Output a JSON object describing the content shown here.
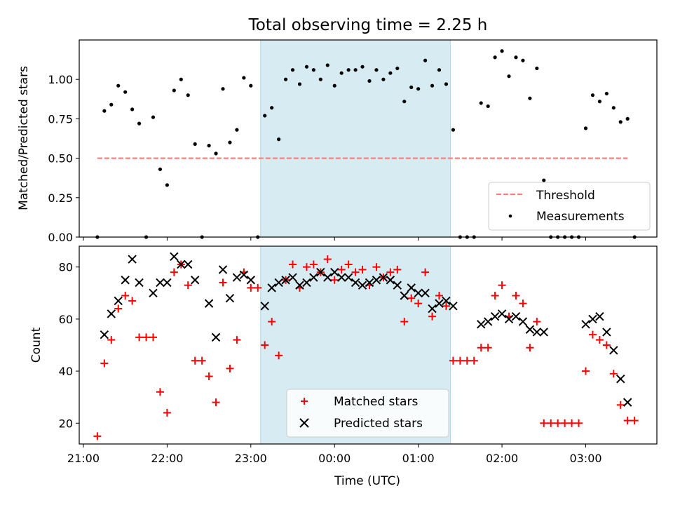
{
  "title": "Total observing time = 2.25 h",
  "chart_data": [
    {
      "type": "scatter",
      "ylabel": "Matched/Predicted stars",
      "xlim_hours": [
        20.95,
        27.85
      ],
      "ylim": [
        0,
        1.25
      ],
      "yticks": [
        0,
        0.25,
        0.5,
        0.75,
        1.0
      ],
      "ytick_labels": [
        "0.00",
        "0.25",
        "0.50",
        "0.75",
        "1.00"
      ],
      "shaded_span": {
        "start": "23:07",
        "end": "01:23"
      },
      "series": [
        {
          "name": "Threshold",
          "style": "dashed-line",
          "color": "#ff7f7f",
          "x": [
            "21:10",
            "03:30"
          ],
          "y": [
            0.5,
            0.5
          ]
        },
        {
          "name": "Measurements",
          "style": "dot",
          "color": "#000000",
          "points": [
            [
              "21:10",
              0.0
            ],
            [
              "21:15",
              0.8
            ],
            [
              "21:20",
              0.84
            ],
            [
              "21:25",
              0.96
            ],
            [
              "21:30",
              0.92
            ],
            [
              "21:35",
              0.81
            ],
            [
              "21:40",
              0.72
            ],
            [
              "21:45",
              0.0
            ],
            [
              "21:50",
              0.76
            ],
            [
              "21:55",
              0.43
            ],
            [
              "22:00",
              0.33
            ],
            [
              "22:05",
              0.93
            ],
            [
              "22:10",
              1.0
            ],
            [
              "22:15",
              0.9
            ],
            [
              "22:20",
              0.59
            ],
            [
              "22:25",
              0.0
            ],
            [
              "22:30",
              0.58
            ],
            [
              "22:35",
              0.53
            ],
            [
              "22:40",
              0.94
            ],
            [
              "22:45",
              0.6
            ],
            [
              "22:50",
              0.68
            ],
            [
              "22:55",
              1.01
            ],
            [
              "23:00",
              0.96
            ],
            [
              "23:05",
              0.0
            ],
            [
              "23:10",
              0.77
            ],
            [
              "23:15",
              0.82
            ],
            [
              "23:20",
              0.62
            ],
            [
              "23:25",
              1.0
            ],
            [
              "23:30",
              1.06
            ],
            [
              "23:35",
              0.97
            ],
            [
              "23:40",
              1.08
            ],
            [
              "23:45",
              1.06
            ],
            [
              "23:50",
              1.0
            ],
            [
              "23:55",
              1.09
            ],
            [
              "00:00",
              0.96
            ],
            [
              "00:05",
              1.04
            ],
            [
              "00:10",
              1.06
            ],
            [
              "00:15",
              1.06
            ],
            [
              "00:20",
              1.08
            ],
            [
              "00:25",
              0.99
            ],
            [
              "00:30",
              1.06
            ],
            [
              "00:35",
              1.0
            ],
            [
              "00:40",
              1.04
            ],
            [
              "00:45",
              1.07
            ],
            [
              "00:50",
              0.86
            ],
            [
              "00:55",
              0.95
            ],
            [
              "01:00",
              0.94
            ],
            [
              "01:05",
              1.12
            ],
            [
              "01:10",
              0.96
            ],
            [
              "01:15",
              1.06
            ],
            [
              "01:20",
              0.97
            ],
            [
              "01:25",
              0.68
            ],
            [
              "01:30",
              0.0
            ],
            [
              "01:35",
              0.0
            ],
            [
              "01:40",
              0.0
            ],
            [
              "01:45",
              0.85
            ],
            [
              "01:50",
              0.83
            ],
            [
              "01:55",
              1.14
            ],
            [
              "02:00",
              1.18
            ],
            [
              "02:05",
              1.02
            ],
            [
              "02:10",
              1.14
            ],
            [
              "02:15",
              1.12
            ],
            [
              "02:20",
              0.88
            ],
            [
              "02:25",
              1.07
            ],
            [
              "02:30",
              0.36
            ],
            [
              "02:35",
              0.0
            ],
            [
              "02:40",
              0.0
            ],
            [
              "02:45",
              0.0
            ],
            [
              "02:50",
              0.0
            ],
            [
              "02:55",
              0.0
            ],
            [
              "03:00",
              0.69
            ],
            [
              "03:05",
              0.9
            ],
            [
              "03:10",
              0.86
            ],
            [
              "03:15",
              0.91
            ],
            [
              "03:20",
              0.82
            ],
            [
              "03:25",
              0.73
            ],
            [
              "03:30",
              0.75
            ],
            [
              "03:35",
              0.0
            ]
          ]
        }
      ],
      "legend": {
        "position": "lower right",
        "entries": [
          "Threshold",
          "Measurements"
        ]
      }
    },
    {
      "type": "scatter",
      "xlabel": "Time (UTC)",
      "ylabel": "Count",
      "xlim_hours": [
        20.95,
        27.85
      ],
      "ylim": [
        12,
        88
      ],
      "yticks": [
        20,
        40,
        60,
        80
      ],
      "ytick_labels": [
        "20",
        "40",
        "60",
        "80"
      ],
      "xtick_labels": [
        "21:00",
        "22:00",
        "23:00",
        "00:00",
        "01:00",
        "02:00",
        "03:00"
      ],
      "shaded_span": {
        "start": "23:07",
        "end": "01:23"
      },
      "series": [
        {
          "name": "Matched stars",
          "marker": "plus",
          "color": "#ff0000",
          "points": [
            [
              "21:10",
              15
            ],
            [
              "21:15",
              43
            ],
            [
              "21:20",
              52
            ],
            [
              "21:25",
              64
            ],
            [
              "21:30",
              69
            ],
            [
              "21:35",
              67
            ],
            [
              "21:40",
              53
            ],
            [
              "21:45",
              53
            ],
            [
              "21:50",
              53
            ],
            [
              "21:55",
              32
            ],
            [
              "22:00",
              24
            ],
            [
              "22:05",
              78
            ],
            [
              "22:10",
              81
            ],
            [
              "22:15",
              73
            ],
            [
              "22:20",
              44
            ],
            [
              "22:25",
              44
            ],
            [
              "22:30",
              38
            ],
            [
              "22:35",
              28
            ],
            [
              "22:40",
              74
            ],
            [
              "22:45",
              41
            ],
            [
              "22:50",
              52
            ],
            [
              "22:55",
              78
            ],
            [
              "23:00",
              72
            ],
            [
              "23:05",
              72
            ],
            [
              "23:10",
              50
            ],
            [
              "23:15",
              59
            ],
            [
              "23:20",
              46
            ],
            [
              "23:25",
              75
            ],
            [
              "23:30",
              81
            ],
            [
              "23:35",
              72
            ],
            [
              "23:40",
              80
            ],
            [
              "23:45",
              81
            ],
            [
              "23:50",
              78
            ],
            [
              "23:55",
              83
            ],
            [
              "00:00",
              75
            ],
            [
              "00:05",
              79
            ],
            [
              "00:10",
              81
            ],
            [
              "00:15",
              78
            ],
            [
              "00:20",
              79
            ],
            [
              "00:25",
              73
            ],
            [
              "00:30",
              80
            ],
            [
              "00:35",
              76
            ],
            [
              "00:40",
              78
            ],
            [
              "00:45",
              79
            ],
            [
              "00:50",
              59
            ],
            [
              "00:55",
              68
            ],
            [
              "01:00",
              66
            ],
            [
              "01:05",
              78
            ],
            [
              "01:10",
              61
            ],
            [
              "01:15",
              69
            ],
            [
              "01:20",
              65
            ],
            [
              "01:25",
              44
            ],
            [
              "01:30",
              44
            ],
            [
              "01:35",
              44
            ],
            [
              "01:40",
              44
            ],
            [
              "01:45",
              49
            ],
            [
              "01:50",
              49
            ],
            [
              "01:55",
              69
            ],
            [
              "02:00",
              73
            ],
            [
              "02:05",
              61
            ],
            [
              "02:10",
              69
            ],
            [
              "02:15",
              66
            ],
            [
              "02:20",
              49
            ],
            [
              "02:25",
              59
            ],
            [
              "02:30",
              20
            ],
            [
              "02:35",
              20
            ],
            [
              "02:40",
              20
            ],
            [
              "02:45",
              20
            ],
            [
              "02:50",
              20
            ],
            [
              "02:55",
              20
            ],
            [
              "03:00",
              40
            ],
            [
              "03:05",
              54
            ],
            [
              "03:10",
              52
            ],
            [
              "03:15",
              50
            ],
            [
              "03:20",
              39
            ],
            [
              "03:25",
              27
            ],
            [
              "03:30",
              21
            ],
            [
              "03:35",
              21
            ]
          ]
        },
        {
          "name": "Predicted stars",
          "marker": "x",
          "color": "#000000",
          "points": [
            [
              "21:15",
              54
            ],
            [
              "21:20",
              62
            ],
            [
              "21:25",
              67
            ],
            [
              "21:30",
              75
            ],
            [
              "21:35",
              83
            ],
            [
              "21:40",
              74
            ],
            [
              "21:50",
              70
            ],
            [
              "21:55",
              74
            ],
            [
              "22:00",
              74
            ],
            [
              "22:05",
              84
            ],
            [
              "22:10",
              81
            ],
            [
              "22:15",
              81
            ],
            [
              "22:20",
              75
            ],
            [
              "22:30",
              66
            ],
            [
              "22:35",
              53
            ],
            [
              "22:40",
              79
            ],
            [
              "22:45",
              68
            ],
            [
              "22:50",
              76
            ],
            [
              "22:55",
              77
            ],
            [
              "23:00",
              75
            ],
            [
              "23:10",
              65
            ],
            [
              "23:15",
              72
            ],
            [
              "23:20",
              74
            ],
            [
              "23:25",
              75
            ],
            [
              "23:30",
              76
            ],
            [
              "23:35",
              73
            ],
            [
              "23:40",
              74
            ],
            [
              "23:45",
              76
            ],
            [
              "23:50",
              78
            ],
            [
              "23:55",
              76
            ],
            [
              "00:00",
              78
            ],
            [
              "00:05",
              76
            ],
            [
              "00:10",
              76
            ],
            [
              "00:15",
              74
            ],
            [
              "00:20",
              73
            ],
            [
              "00:25",
              74
            ],
            [
              "00:30",
              75
            ],
            [
              "00:35",
              76
            ],
            [
              "00:40",
              75
            ],
            [
              "00:45",
              73
            ],
            [
              "00:50",
              69
            ],
            [
              "00:55",
              72
            ],
            [
              "01:00",
              70
            ],
            [
              "01:05",
              70
            ],
            [
              "01:10",
              64
            ],
            [
              "01:15",
              66
            ],
            [
              "01:20",
              67
            ],
            [
              "01:25",
              65
            ],
            [
              "01:45",
              58
            ],
            [
              "01:50",
              59
            ],
            [
              "01:55",
              61
            ],
            [
              "02:00",
              62
            ],
            [
              "02:05",
              60
            ],
            [
              "02:10",
              61
            ],
            [
              "02:15",
              59
            ],
            [
              "02:20",
              56
            ],
            [
              "02:25",
              55
            ],
            [
              "02:30",
              55
            ],
            [
              "03:00",
              58
            ],
            [
              "03:05",
              60
            ],
            [
              "03:10",
              61
            ],
            [
              "03:15",
              55
            ],
            [
              "03:20",
              48
            ],
            [
              "03:25",
              37
            ],
            [
              "03:30",
              28
            ]
          ]
        }
      ],
      "legend": {
        "position": "lower center",
        "entries": [
          "Matched stars",
          "Predicted stars"
        ]
      }
    }
  ]
}
